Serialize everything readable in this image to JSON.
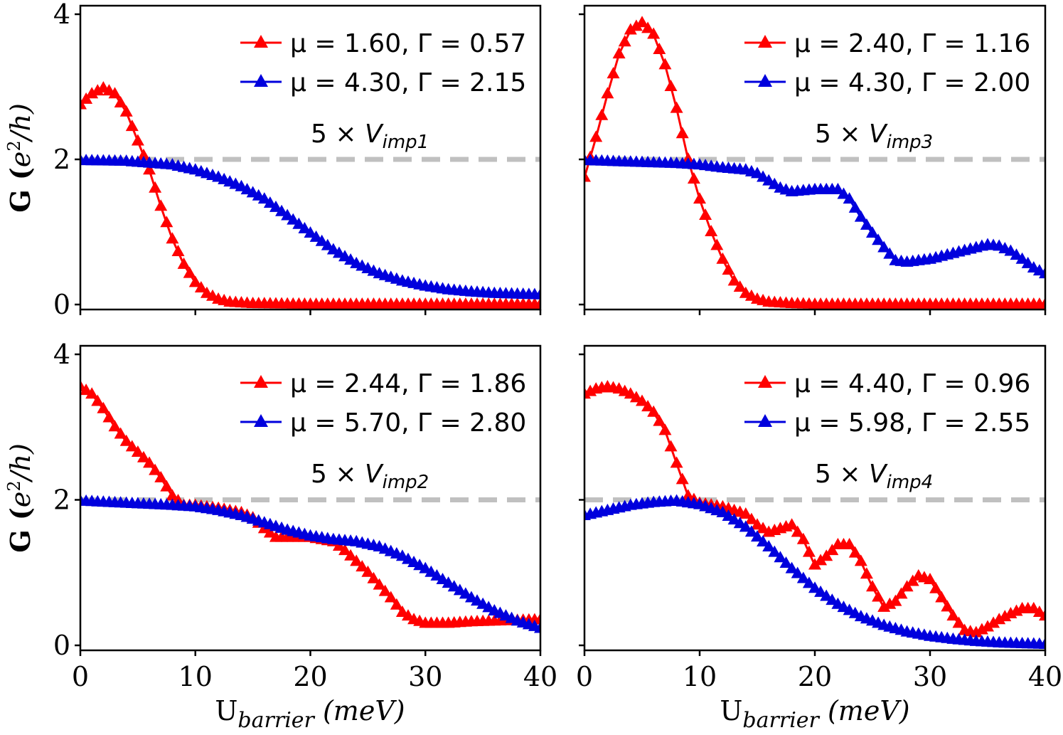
{
  "colors": {
    "red": "#ff0000",
    "blue": "#0000dd",
    "reference": "#c0c0c0",
    "axis": "#000000"
  },
  "axes_text": {
    "ylabel_prefix": "G (",
    "ylabel_e": "e",
    "ylabel_sup": "2",
    "ylabel_rest": "/h)",
    "ylabel_close": ")",
    "xlabel_main": "U",
    "xlabel_sub": "barrier",
    "xlabel_unit": " (meV)"
  },
  "chart_data": [
    {
      "type": "line",
      "panel": "top-left",
      "annotation": {
        "prefix": "5 × ",
        "var": "V",
        "sub": "imp1"
      },
      "xlim": [
        0,
        40
      ],
      "ylim": [
        0,
        4
      ],
      "xticks": [
        "0",
        "10",
        "20",
        "30",
        "40"
      ],
      "yticks": [
        "0",
        "2",
        "4"
      ],
      "reference_y": 2,
      "series": [
        {
          "name": "μ = 1.60, Γ = 0.57",
          "color": "red",
          "points": [
            [
              0,
              2.75
            ],
            [
              1,
              2.9
            ],
            [
              2,
              2.98
            ],
            [
              3,
              2.9
            ],
            [
              4,
              2.65
            ],
            [
              5,
              2.25
            ],
            [
              6,
              1.85
            ],
            [
              7,
              1.35
            ],
            [
              8,
              0.9
            ],
            [
              9,
              0.55
            ],
            [
              10,
              0.3
            ],
            [
              11,
              0.15
            ],
            [
              12,
              0.07
            ],
            [
              13,
              0.03
            ],
            [
              15,
              0.01
            ],
            [
              20,
              0.0
            ],
            [
              40,
              0.0
            ]
          ]
        },
        {
          "name": "μ = 4.30, Γ = 2.15",
          "color": "blue",
          "points": [
            [
              0,
              1.98
            ],
            [
              4,
              1.97
            ],
            [
              8,
              1.92
            ],
            [
              10,
              1.85
            ],
            [
              12,
              1.75
            ],
            [
              14,
              1.62
            ],
            [
              16,
              1.45
            ],
            [
              18,
              1.22
            ],
            [
              20,
              0.98
            ],
            [
              22,
              0.75
            ],
            [
              24,
              0.56
            ],
            [
              26,
              0.42
            ],
            [
              28,
              0.32
            ],
            [
              30,
              0.25
            ],
            [
              32,
              0.2
            ],
            [
              34,
              0.17
            ],
            [
              36,
              0.15
            ],
            [
              38,
              0.14
            ],
            [
              40,
              0.13
            ]
          ]
        }
      ]
    },
    {
      "type": "line",
      "panel": "top-right",
      "annotation": {
        "prefix": "5 × ",
        "var": "V",
        "sub": "imp3"
      },
      "xlim": [
        0,
        40
      ],
      "ylim": [
        0,
        4
      ],
      "xticks": [
        "0",
        "10",
        "20",
        "30",
        "40"
      ],
      "yticks": [
        "0",
        "2",
        "4"
      ],
      "reference_y": 2,
      "series": [
        {
          "name": "μ = 2.40, Γ = 1.16",
          "color": "red",
          "points": [
            [
              0,
              1.75
            ],
            [
              1,
              2.3
            ],
            [
              2,
              2.9
            ],
            [
              3,
              3.45
            ],
            [
              4,
              3.78
            ],
            [
              5,
              3.88
            ],
            [
              6,
              3.72
            ],
            [
              7,
              3.3
            ],
            [
              8,
              2.7
            ],
            [
              9,
              2.0
            ],
            [
              10,
              1.45
            ],
            [
              11,
              1.0
            ],
            [
              12,
              0.62
            ],
            [
              13,
              0.32
            ],
            [
              14,
              0.15
            ],
            [
              15,
              0.07
            ],
            [
              16,
              0.03
            ],
            [
              18,
              0.01
            ],
            [
              20,
              0.0
            ],
            [
              40,
              0.0
            ]
          ]
        },
        {
          "name": "μ = 4.30, Γ = 2.00",
          "color": "blue",
          "points": [
            [
              0,
              1.98
            ],
            [
              4,
              1.96
            ],
            [
              8,
              1.94
            ],
            [
              10,
              1.92
            ],
            [
              12,
              1.88
            ],
            [
              14,
              1.85
            ],
            [
              15,
              1.8
            ],
            [
              17,
              1.6
            ],
            [
              18,
              1.55
            ],
            [
              20,
              1.58
            ],
            [
              22,
              1.58
            ],
            [
              23,
              1.45
            ],
            [
              24,
              1.2
            ],
            [
              25,
              0.98
            ],
            [
              26,
              0.78
            ],
            [
              27,
              0.6
            ],
            [
              28,
              0.58
            ],
            [
              30,
              0.62
            ],
            [
              32,
              0.7
            ],
            [
              34,
              0.78
            ],
            [
              35,
              0.82
            ],
            [
              36,
              0.8
            ],
            [
              37,
              0.73
            ],
            [
              38,
              0.62
            ],
            [
              39,
              0.5
            ],
            [
              40,
              0.42
            ]
          ]
        }
      ]
    },
    {
      "type": "line",
      "panel": "bottom-left",
      "annotation": {
        "prefix": "5 × ",
        "var": "V",
        "sub": "imp2"
      },
      "xlim": [
        0,
        40
      ],
      "ylim": [
        0,
        4
      ],
      "xticks": [
        "0",
        "10",
        "20",
        "30",
        "40"
      ],
      "yticks": [
        "0",
        "2",
        "4"
      ],
      "reference_y": 2,
      "series": [
        {
          "name": "μ = 2.44, Γ = 1.86",
          "color": "red",
          "points": [
            [
              0,
              3.55
            ],
            [
              1,
              3.45
            ],
            [
              2,
              3.25
            ],
            [
              3,
              3.0
            ],
            [
              4,
              2.8
            ],
            [
              5,
              2.65
            ],
            [
              6,
              2.5
            ],
            [
              7,
              2.3
            ],
            [
              8,
              2.05
            ],
            [
              9,
              1.92
            ],
            [
              10,
              1.92
            ],
            [
              12,
              1.88
            ],
            [
              14,
              1.82
            ],
            [
              15,
              1.75
            ],
            [
              16,
              1.6
            ],
            [
              17,
              1.48
            ],
            [
              18,
              1.48
            ],
            [
              20,
              1.48
            ],
            [
              22,
              1.42
            ],
            [
              23,
              1.3
            ],
            [
              25,
              1.0
            ],
            [
              27,
              0.65
            ],
            [
              28,
              0.45
            ],
            [
              29,
              0.35
            ],
            [
              30,
              0.3
            ],
            [
              32,
              0.3
            ],
            [
              34,
              0.32
            ],
            [
              36,
              0.33
            ],
            [
              38,
              0.34
            ],
            [
              40,
              0.35
            ]
          ]
        },
        {
          "name": "μ = 5.70, Γ = 2.80",
          "color": "blue",
          "points": [
            [
              0,
              1.98
            ],
            [
              4,
              1.95
            ],
            [
              8,
              1.92
            ],
            [
              10,
              1.9
            ],
            [
              12,
              1.85
            ],
            [
              14,
              1.78
            ],
            [
              16,
              1.68
            ],
            [
              18,
              1.58
            ],
            [
              20,
              1.5
            ],
            [
              22,
              1.45
            ],
            [
              24,
              1.42
            ],
            [
              26,
              1.35
            ],
            [
              28,
              1.22
            ],
            [
              30,
              1.05
            ],
            [
              32,
              0.85
            ],
            [
              34,
              0.65
            ],
            [
              36,
              0.47
            ],
            [
              38,
              0.33
            ],
            [
              40,
              0.23
            ]
          ]
        }
      ]
    },
    {
      "type": "line",
      "panel": "bottom-right",
      "annotation": {
        "prefix": "5 × ",
        "var": "V",
        "sub": "imp4"
      },
      "xlim": [
        0,
        40
      ],
      "ylim": [
        0,
        4
      ],
      "xticks": [
        "0",
        "10",
        "20",
        "30",
        "40"
      ],
      "yticks": [
        "0",
        "2",
        "4"
      ],
      "reference_y": 2,
      "series": [
        {
          "name": "μ = 4.40, Γ = 0.96",
          "color": "red",
          "points": [
            [
              0,
              3.45
            ],
            [
              1,
              3.52
            ],
            [
              2,
              3.55
            ],
            [
              3,
              3.52
            ],
            [
              4,
              3.45
            ],
            [
              5,
              3.35
            ],
            [
              6,
              3.2
            ],
            [
              7,
              2.95
            ],
            [
              8,
              2.5
            ],
            [
              9,
              2.05
            ],
            [
              10,
              1.95
            ],
            [
              12,
              1.9
            ],
            [
              14,
              1.8
            ],
            [
              15,
              1.65
            ],
            [
              16,
              1.55
            ],
            [
              17,
              1.6
            ],
            [
              18,
              1.65
            ],
            [
              19,
              1.45
            ],
            [
              20,
              1.1
            ],
            [
              21,
              1.22
            ],
            [
              22,
              1.38
            ],
            [
              23,
              1.38
            ],
            [
              24,
              1.15
            ],
            [
              25,
              0.8
            ],
            [
              26,
              0.52
            ],
            [
              27,
              0.6
            ],
            [
              28,
              0.8
            ],
            [
              29,
              0.95
            ],
            [
              30,
              0.9
            ],
            [
              31,
              0.65
            ],
            [
              32,
              0.4
            ],
            [
              33,
              0.2
            ],
            [
              34,
              0.17
            ],
            [
              35,
              0.25
            ],
            [
              36,
              0.35
            ],
            [
              37,
              0.43
            ],
            [
              38,
              0.5
            ],
            [
              39,
              0.5
            ],
            [
              40,
              0.4
            ]
          ]
        },
        {
          "name": "μ = 5.98, Γ = 2.55",
          "color": "blue",
          "points": [
            [
              0,
              1.78
            ],
            [
              2,
              1.85
            ],
            [
              4,
              1.92
            ],
            [
              6,
              1.96
            ],
            [
              8,
              1.98
            ],
            [
              10,
              1.93
            ],
            [
              12,
              1.82
            ],
            [
              14,
              1.62
            ],
            [
              16,
              1.35
            ],
            [
              18,
              1.05
            ],
            [
              20,
              0.78
            ],
            [
              22,
              0.56
            ],
            [
              24,
              0.39
            ],
            [
              26,
              0.27
            ],
            [
              28,
              0.18
            ],
            [
              30,
              0.12
            ],
            [
              32,
              0.08
            ],
            [
              34,
              0.05
            ],
            [
              36,
              0.03
            ],
            [
              38,
              0.02
            ],
            [
              40,
              0.01
            ]
          ]
        }
      ]
    }
  ]
}
